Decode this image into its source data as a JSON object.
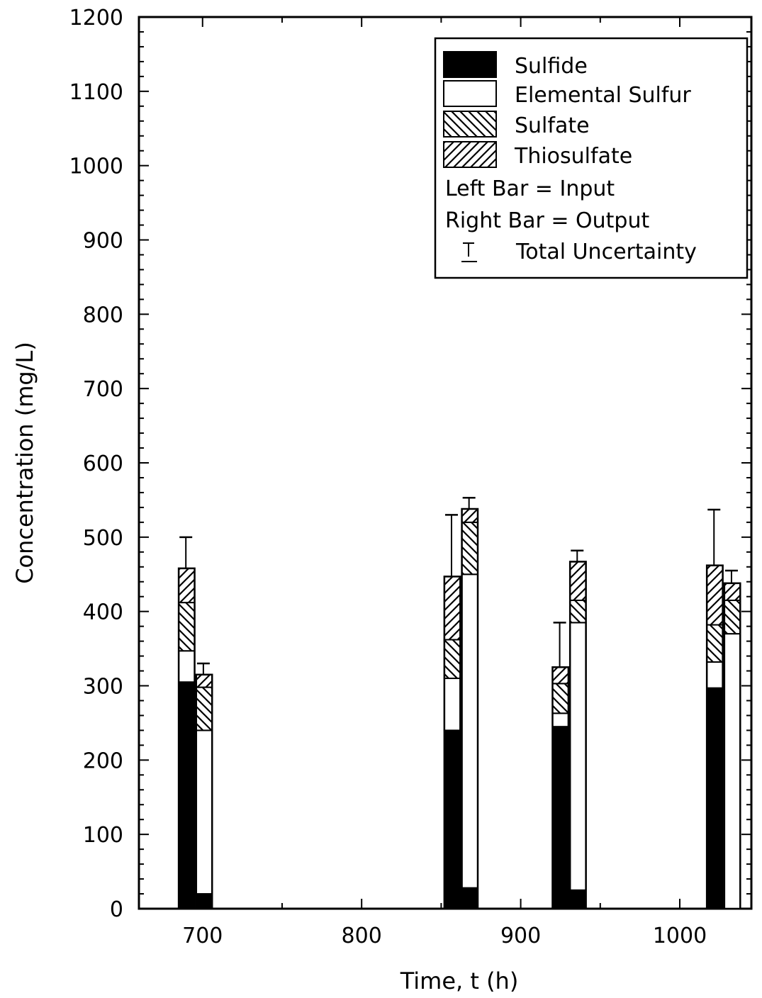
{
  "chart_data": {
    "type": "bar",
    "stacked": true,
    "xlabel": "Time, t (h)",
    "ylabel": "Concentration (mg/L)",
    "xlim": [
      660,
      1045
    ],
    "ylim": [
      0,
      1200
    ],
    "x_ticks": [
      700,
      800,
      900,
      1000
    ],
    "y_ticks": [
      0,
      100,
      200,
      300,
      400,
      500,
      600,
      700,
      800,
      900,
      1000,
      1100,
      1200
    ],
    "legend": {
      "position": "top-right",
      "entries": [
        {
          "name": "Sulfide",
          "pattern": "solid-black"
        },
        {
          "name": "Elemental Sulfur",
          "pattern": "white"
        },
        {
          "name": "Sulfate",
          "pattern": "hatch-backslash"
        },
        {
          "name": "Thiosulfate",
          "pattern": "hatch-slash"
        }
      ],
      "notes": [
        "Left Bar = Input",
        "Right Bar = Output"
      ],
      "uncertainty_label": "Total Uncertainty"
    },
    "bar_width_h": 10,
    "groups": [
      {
        "x": 690,
        "input": {
          "x": 690,
          "Sulfide": 305,
          "Elemental Sulfur": 42,
          "Sulfate": 65,
          "Thiosulfate": 46,
          "error_top": 500
        },
        "output": {
          "x": 701,
          "Sulfide": 20,
          "Elemental Sulfur": 220,
          "Sulfate": 58,
          "Thiosulfate": 17,
          "error_top": 330
        }
      },
      {
        "x": 858,
        "input": {
          "x": 857,
          "Sulfide": 240,
          "Elemental Sulfur": 70,
          "Sulfate": 52,
          "Thiosulfate": 85,
          "error_top": 530
        },
        "output": {
          "x": 868,
          "Sulfide": 28,
          "Elemental Sulfur": 422,
          "Sulfate": 70,
          "Thiosulfate": 18,
          "error_top": 553
        }
      },
      {
        "x": 926,
        "input": {
          "x": 925,
          "Sulfide": 245,
          "Elemental Sulfur": 18,
          "Sulfate": 40,
          "Thiosulfate": 22,
          "error_top": 385
        },
        "output": {
          "x": 936,
          "Sulfide": 25,
          "Elemental Sulfur": 360,
          "Sulfate": 30,
          "Thiosulfate": 52,
          "error_top": 482
        }
      },
      {
        "x": 1028,
        "input": {
          "x": 1022,
          "Sulfide": 297,
          "Elemental Sulfur": 35,
          "Sulfate": 50,
          "Thiosulfate": 80,
          "error_top": 537
        },
        "output": {
          "x": 1033,
          "Sulfide": 0,
          "Elemental Sulfur": 370,
          "Sulfate": 45,
          "Thiosulfate": 23,
          "error_top": 455
        }
      }
    ]
  }
}
